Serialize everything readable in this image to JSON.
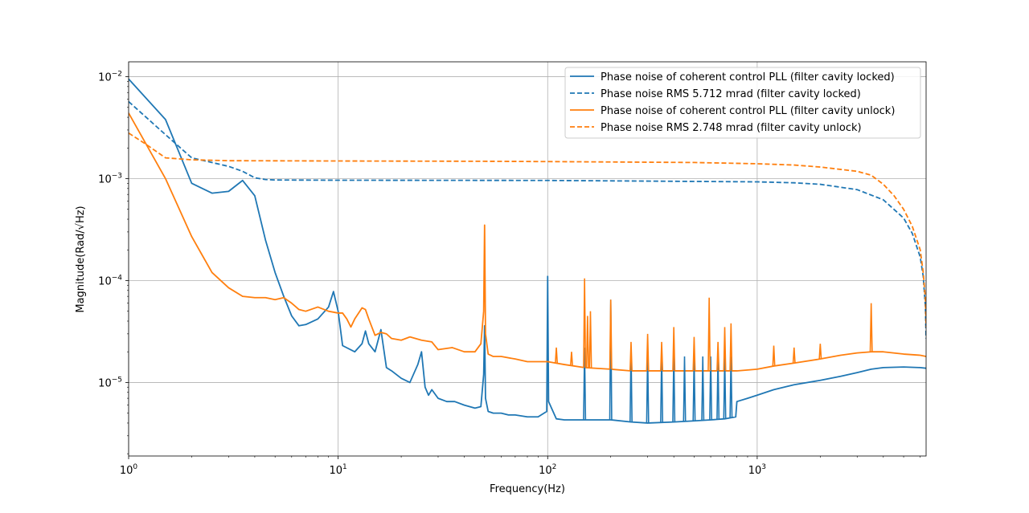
{
  "chart_data": {
    "type": "line",
    "title": "",
    "xlabel": "Frequency(Hz)",
    "ylabel": "Magnitude(Rad/√Hz)",
    "xscale": "log",
    "yscale": "log",
    "xlim": [
      1,
      6400
    ],
    "ylim": [
      1.9e-06,
      0.014
    ],
    "grid": true,
    "legend_position": "top-right",
    "x_ticks": [
      {
        "value": 1,
        "base": "10",
        "exp": "0"
      },
      {
        "value": 10,
        "base": "10",
        "exp": "1"
      },
      {
        "value": 100,
        "base": "10",
        "exp": "2"
      },
      {
        "value": 1000,
        "base": "10",
        "exp": "3"
      }
    ],
    "y_ticks": [
      {
        "value": 1e-05,
        "base": "10",
        "exp": "−5"
      },
      {
        "value": 0.0001,
        "base": "10",
        "exp": "−4"
      },
      {
        "value": 0.001,
        "base": "10",
        "exp": "−3"
      },
      {
        "value": 0.01,
        "base": "10",
        "exp": "−2"
      }
    ],
    "series": [
      {
        "name": "Phase noise of coherent control PLL (filter cavity locked)",
        "color": "#1f77b4",
        "style": "solid",
        "x": [
          1,
          1.5,
          2,
          2.5,
          3,
          3.5,
          4,
          4.5,
          5,
          5.5,
          6,
          6.5,
          7,
          8,
          9,
          9.5,
          10,
          10.5,
          12,
          13,
          13.5,
          14,
          15,
          16,
          17,
          18,
          20,
          22,
          24,
          25,
          26,
          27,
          28,
          30,
          33,
          36,
          40,
          45,
          48,
          49.5,
          50,
          50.5,
          52,
          55,
          60,
          65,
          70,
          80,
          90,
          99,
          100,
          101,
          110,
          120,
          150,
          200,
          250,
          300,
          400,
          500,
          600,
          700,
          790,
          800,
          900,
          1000,
          1200,
          1500,
          2000,
          2500,
          3000,
          3500,
          4000,
          5000,
          6000,
          6400
        ],
        "y": [
          0.0095,
          0.0038,
          0.0009,
          0.00072,
          0.00075,
          0.00096,
          0.00068,
          0.00025,
          0.00012,
          7e-05,
          4.5e-05,
          3.6e-05,
          3.7e-05,
          4.2e-05,
          5.5e-05,
          7.8e-05,
          5e-05,
          2.3e-05,
          2e-05,
          2.4e-05,
          3.2e-05,
          2.4e-05,
          2e-05,
          3.3e-05,
          1.4e-05,
          1.3e-05,
          1.1e-05,
          1e-05,
          1.5e-05,
          2e-05,
          9e-06,
          7.5e-06,
          8.5e-06,
          7e-06,
          6.5e-06,
          6.5e-06,
          6e-06,
          5.6e-06,
          5.8e-06,
          1.2e-05,
          3.6e-05,
          7e-06,
          5.2e-06,
          5e-06,
          5e-06,
          4.8e-06,
          4.8e-06,
          4.6e-06,
          4.6e-06,
          5.2e-06,
          0.00011,
          6.5e-06,
          4.4e-06,
          4.3e-06,
          4.3e-06,
          4.3e-06,
          4.1e-06,
          4e-06,
          4.1e-06,
          4.2e-06,
          4.3e-06,
          4.4e-06,
          4.6e-06,
          6.5e-06,
          7e-06,
          7.5e-06,
          8.5e-06,
          9.5e-06,
          1.05e-05,
          1.15e-05,
          1.25e-05,
          1.35e-05,
          1.4e-05,
          1.42e-05,
          1.4e-05,
          1.38e-05
        ]
      },
      {
        "name": "Phase noise RMS 5.712 mrad (filter cavity locked)",
        "color": "#1f77b4",
        "style": "dashed",
        "x": [
          1,
          1.5,
          2,
          3,
          3.5,
          4,
          4.5,
          5,
          10,
          100,
          1000,
          1500,
          2000,
          3000,
          4000,
          5000,
          5500,
          6000,
          6200,
          6350,
          6400
        ],
        "y": [
          0.0057,
          0.0027,
          0.0016,
          0.00132,
          0.00118,
          0.00102,
          0.00098,
          0.00097,
          0.000965,
          0.00096,
          0.00093,
          0.00091,
          0.00088,
          0.00078,
          0.00062,
          0.00041,
          0.00029,
          0.00017,
          0.00011,
          5.5e-05,
          2.7e-05
        ]
      },
      {
        "name": "Phase noise of coherent control PLL (filter cavity unlock)",
        "color": "#ff7f0e",
        "style": "solid",
        "x": [
          1,
          1.5,
          2,
          2.5,
          3,
          3.5,
          4,
          4.5,
          5,
          5.5,
          6,
          6.5,
          7,
          8,
          9,
          10,
          10.5,
          11,
          11.5,
          12,
          13,
          13.5,
          14,
          15,
          16,
          17,
          18,
          20,
          22,
          25,
          28,
          30,
          35,
          40,
          45,
          48,
          49.5,
          50,
          50.5,
          52,
          55,
          60,
          70,
          80,
          90,
          100,
          120,
          150,
          200,
          250,
          300,
          400,
          500,
          600,
          700,
          800,
          1000,
          1200,
          1500,
          2000,
          2500,
          3000,
          3500,
          4000,
          5000,
          6000,
          6400
        ],
        "y": [
          0.0044,
          0.001,
          0.00027,
          0.00012,
          8.5e-05,
          7e-05,
          6.8e-05,
          6.8e-05,
          6.5e-05,
          6.8e-05,
          6e-05,
          5.2e-05,
          5e-05,
          5.5e-05,
          5e-05,
          4.8e-05,
          4.8e-05,
          4.2e-05,
          3.5e-05,
          4.2e-05,
          5.4e-05,
          5.2e-05,
          4.2e-05,
          2.9e-05,
          3.1e-05,
          3e-05,
          2.7e-05,
          2.6e-05,
          2.8e-05,
          2.6e-05,
          2.5e-05,
          2.1e-05,
          2.2e-05,
          2e-05,
          2e-05,
          2.4e-05,
          5e-05,
          0.00035,
          3e-05,
          1.9e-05,
          1.8e-05,
          1.8e-05,
          1.7e-05,
          1.6e-05,
          1.6e-05,
          1.6e-05,
          1.5e-05,
          1.4e-05,
          1.35e-05,
          1.3e-05,
          1.3e-05,
          1.3e-05,
          1.3e-05,
          1.3e-05,
          1.3e-05,
          1.3e-05,
          1.35e-05,
          1.45e-05,
          1.55e-05,
          1.7e-05,
          1.85e-05,
          1.95e-05,
          2e-05,
          2e-05,
          1.9e-05,
          1.85e-05,
          1.8e-05
        ]
      },
      {
        "name": "Phase noise RMS 2.748 mrad (filter cavity unlock)",
        "color": "#ff7f0e",
        "style": "dashed",
        "x": [
          1,
          1.2,
          1.5,
          2,
          3,
          10,
          50,
          100,
          500,
          1000,
          1500,
          2000,
          3000,
          3500,
          4000,
          4500,
          5000,
          5500,
          6000,
          6200,
          6350,
          6400
        ],
        "y": [
          0.0028,
          0.0022,
          0.0016,
          0.00153,
          0.0015,
          0.00149,
          0.00148,
          0.00147,
          0.00144,
          0.0014,
          0.00136,
          0.0013,
          0.00118,
          0.00108,
          0.00088,
          0.00068,
          0.0005,
          0.00034,
          0.0002,
          0.00012,
          6.5e-05,
          3.5e-05
        ]
      }
    ],
    "spikes": [
      {
        "series": 0,
        "x": [
          150,
          200,
          250,
          300,
          350,
          400,
          450,
          500,
          550,
          600,
          650,
          700,
          750
        ],
        "y": [
          2.2e-05,
          6.5e-05,
          2.2e-05,
          2e-05,
          2e-05,
          2e-05,
          1.8e-05,
          1.8e-05,
          1.8e-05,
          1.8e-05,
          1.8e-05,
          1.8e-05,
          1.8e-05
        ]
      },
      {
        "series": 2,
        "x": [
          110,
          130,
          150,
          155,
          160,
          200,
          250,
          300,
          350,
          400,
          500,
          590,
          650,
          700,
          750,
          1200,
          1500,
          2000,
          3500
        ],
        "y": [
          2.2e-05,
          2e-05,
          0.000105,
          4.5e-05,
          5e-05,
          6.5e-05,
          2.5e-05,
          3e-05,
          2.5e-05,
          3.5e-05,
          2.8e-05,
          6.8e-05,
          2.5e-05,
          3.5e-05,
          3.8e-05,
          2.3e-05,
          2.2e-05,
          2.4e-05,
          6e-05
        ]
      }
    ]
  }
}
